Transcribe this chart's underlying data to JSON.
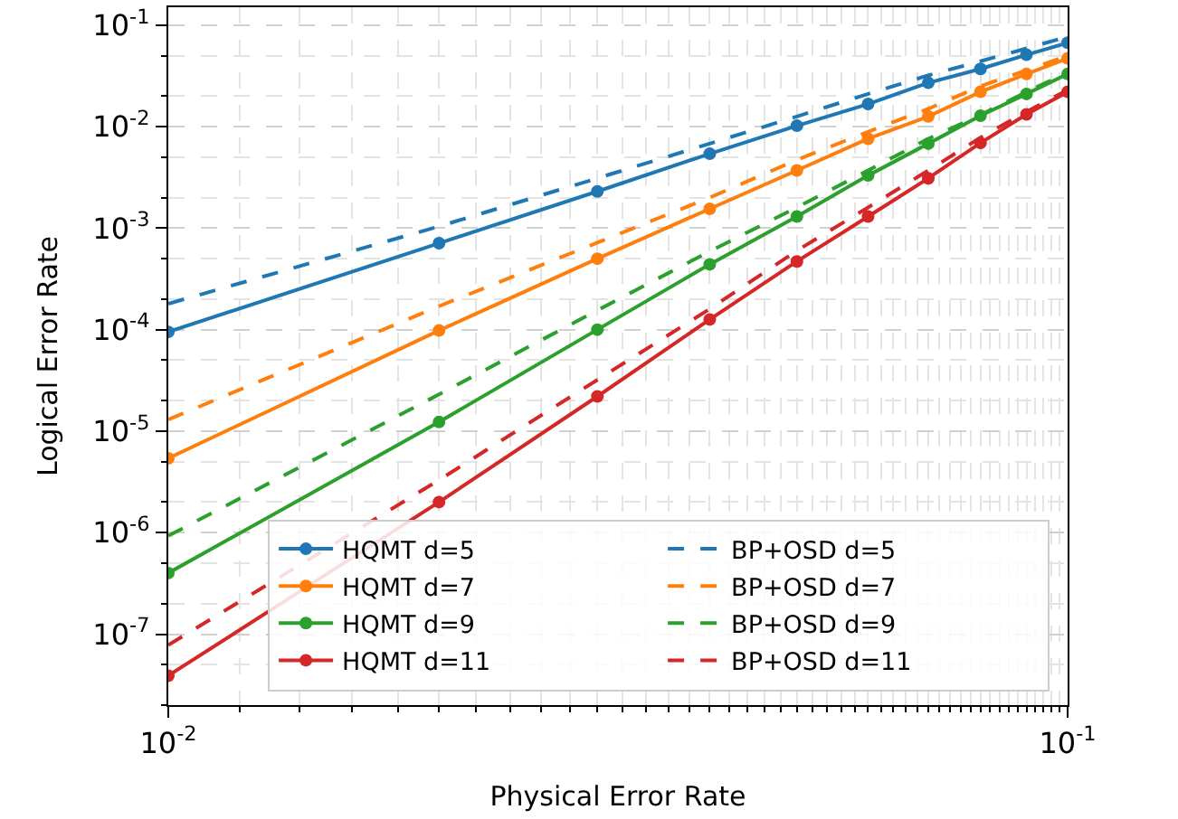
{
  "chart_data": {
    "type": "line",
    "xlabel": "Physical Error Rate",
    "ylabel": "Logical Error Rate",
    "log": "xy",
    "grid": true,
    "legend": "bottom right",
    "marker": "circle",
    "x": [
      0.01,
      0.02,
      0.03,
      0.04,
      0.05,
      0.06,
      0.07,
      0.08,
      0.09,
      0.1
    ],
    "xlim": [
      0.01,
      0.1
    ],
    "xticks": [
      {
        "value": 0.01,
        "label": "10$^{-2}$"
      },
      {
        "value": 0.1,
        "label": "10$^{-1}$"
      }
    ],
    "ylim": [
      2e-08,
      0.15
    ],
    "yticks": [
      {
        "value": 1e-07,
        "label": "10$^{-7}$"
      },
      {
        "value": 1e-06,
        "label": "10$^{-6}$"
      },
      {
        "value": 1e-05,
        "label": "10$^{-5}$"
      },
      {
        "value": 0.0001,
        "label": "10$^{-4}$"
      },
      {
        "value": 0.001,
        "label": "10$^{-3}$"
      },
      {
        "value": 0.01,
        "label": "10$^{-2}$"
      },
      {
        "value": 0.1,
        "label": "10$^{-1}$"
      }
    ],
    "series": [
      {
        "name": "HQMT d=5",
        "color": "#1f77b4",
        "values": [
          9.5e-05,
          0.00071,
          0.0023,
          0.0054,
          0.0102,
          0.0167,
          0.027,
          0.037,
          0.051,
          0.067
        ]
      },
      {
        "name": "HQMT d=7",
        "color": "#ff7f0e",
        "values": [
          5.4e-06,
          9.8e-05,
          0.0005,
          0.00155,
          0.0037,
          0.0076,
          0.0126,
          0.022,
          0.033,
          0.047
        ]
      },
      {
        "name": "HQMT d=9",
        "color": "#2ca02c",
        "values": [
          4e-07,
          1.23e-05,
          0.0001,
          0.00044,
          0.0013,
          0.0033,
          0.0068,
          0.0128,
          0.021,
          0.033
        ]
      },
      {
        "name": "HQMT d=11",
        "color": "#d62728",
        "values": [
          3.9e-08,
          2e-06,
          2.2e-05,
          0.000126,
          0.00047,
          0.0013,
          0.0031,
          0.0069,
          0.0132,
          0.022
        ]
      },
      {
        "name": "BP+OSD d=5",
        "color": "#1f77b4",
        "marker": "none",
        "line_style": "dashed",
        "values": [
          0.00018,
          0.00104,
          0.0031,
          0.0068,
          0.0126,
          0.021,
          0.032,
          0.044,
          0.059,
          0.077
        ]
      },
      {
        "name": "BP+OSD d=7",
        "color": "#ff7f0e",
        "marker": "none",
        "line_style": "dashed",
        "values": [
          1.3e-05,
          0.00017,
          0.00072,
          0.002,
          0.0047,
          0.0089,
          0.015,
          0.025,
          0.036,
          0.05
        ]
      },
      {
        "name": "BP+OSD d=9",
        "color": "#2ca02c",
        "marker": "none",
        "line_style": "dashed",
        "values": [
          9.3e-07,
          2.3e-05,
          0.000155,
          0.00059,
          0.0016,
          0.0037,
          0.0076,
          0.013,
          0.022,
          0.034
        ]
      },
      {
        "name": "BP+OSD d=11",
        "color": "#d62728",
        "marker": "none",
        "line_style": "dashed",
        "values": [
          7.8e-08,
          3.3e-06,
          3.2e-05,
          0.00016,
          0.0006,
          0.0016,
          0.0037,
          0.0078,
          0.014,
          0.023
        ]
      }
    ]
  }
}
